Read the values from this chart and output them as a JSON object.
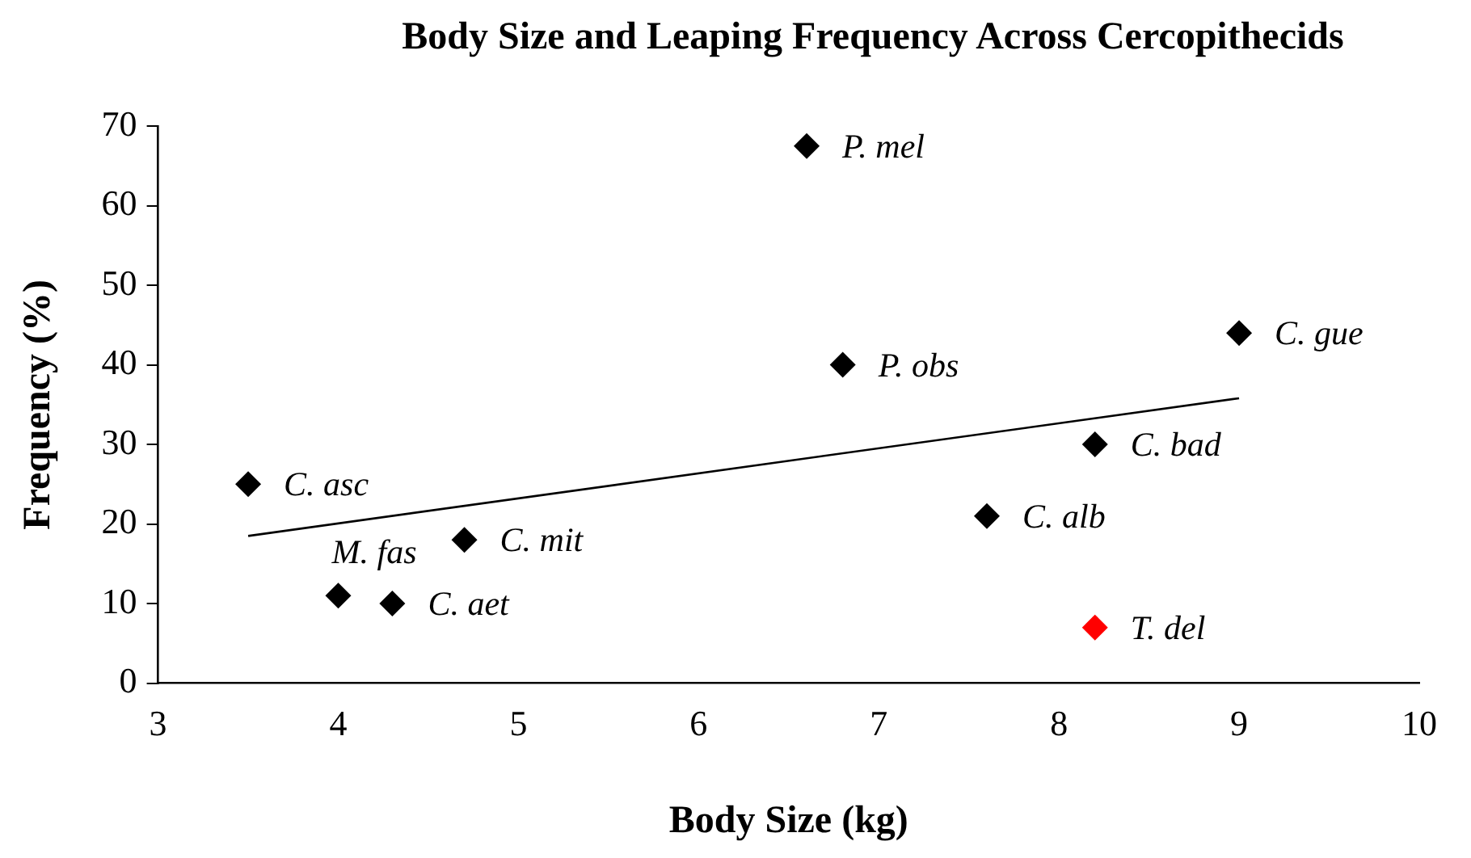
{
  "chart_data": {
    "type": "scatter",
    "title": "Body Size and Leaping Frequency Across Cercopithecids",
    "xlabel": "Body Size (kg)",
    "ylabel": "Frequency (%)",
    "xlim": [
      3,
      10
    ],
    "xticks": [
      3,
      4,
      5,
      6,
      7,
      8,
      9,
      10
    ],
    "ylim": [
      0,
      70
    ],
    "yticks": [
      0,
      10,
      20,
      30,
      40,
      50,
      60,
      70
    ],
    "grid": false,
    "legend": false,
    "marker": "diamond",
    "series": [
      {
        "color": "#000000",
        "x": [
          3.5,
          4.0,
          4.3,
          4.7,
          6.6,
          6.8,
          7.6,
          8.2,
          9.0
        ],
        "values": [
          25,
          11,
          10,
          18,
          67.5,
          40,
          21,
          30,
          44
        ]
      },
      {
        "color": "#ff0000",
        "x": [
          8.2
        ],
        "values": [
          7
        ]
      },
      {
        "type": "line",
        "color": "#000000",
        "marker": "none",
        "x": [
          3.5,
          9.0
        ],
        "values": [
          18.5,
          35.8
        ]
      }
    ],
    "annotations": [
      {
        "text": "C. asc",
        "x": 3.5,
        "y": 25
      },
      {
        "text": "M. fas",
        "x": 4.0,
        "y": 11
      },
      {
        "text": "C. aet",
        "x": 4.3,
        "y": 10
      },
      {
        "text": "C. mit",
        "x": 4.7,
        "y": 18
      },
      {
        "text": "P. mel",
        "x": 6.6,
        "y": 67.5
      },
      {
        "text": "P. obs",
        "x": 6.8,
        "y": 40
      },
      {
        "text": "C. alb",
        "x": 7.6,
        "y": 21
      },
      {
        "text": "C. bad",
        "x": 8.2,
        "y": 30
      },
      {
        "text": "C. gue",
        "x": 9.0,
        "y": 44
      },
      {
        "text": "T. del",
        "x": 8.2,
        "y": 7
      }
    ]
  }
}
